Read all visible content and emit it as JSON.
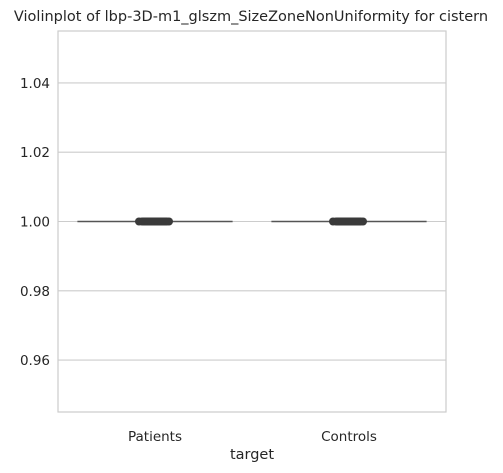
{
  "chart_data": {
    "type": "violin",
    "title": "Violinplot of lbp-3D-m1_glszm_SizeZoneNonUniformity for cistern",
    "xlabel": "target",
    "ylabel": "",
    "categories": [
      "Patients",
      "Controls"
    ],
    "ylim": [
      0.945,
      1.055
    ],
    "yticks": [
      0.96,
      0.98,
      1.0,
      1.02,
      1.04
    ],
    "ytick_labels": [
      "0.96",
      "0.98",
      "1.00",
      "1.02",
      "1.04"
    ],
    "grid": "horizontal",
    "series": [
      {
        "category": "Patients",
        "values": [
          1.0,
          1.0,
          1.0,
          1.0,
          1.0,
          1.0,
          1.0,
          1.0,
          1.0,
          1.0
        ],
        "median": 1.0
      },
      {
        "category": "Controls",
        "values": [
          1.0,
          1.0,
          1.0,
          1.0,
          1.0,
          1.0,
          1.0,
          1.0,
          1.0,
          1.0
        ],
        "median": 1.0
      }
    ],
    "colors": {
      "grid": "#cccccc",
      "spine": "#cccccc",
      "line": "#555555",
      "point": "#3a3a3a",
      "text": "#262626"
    }
  }
}
